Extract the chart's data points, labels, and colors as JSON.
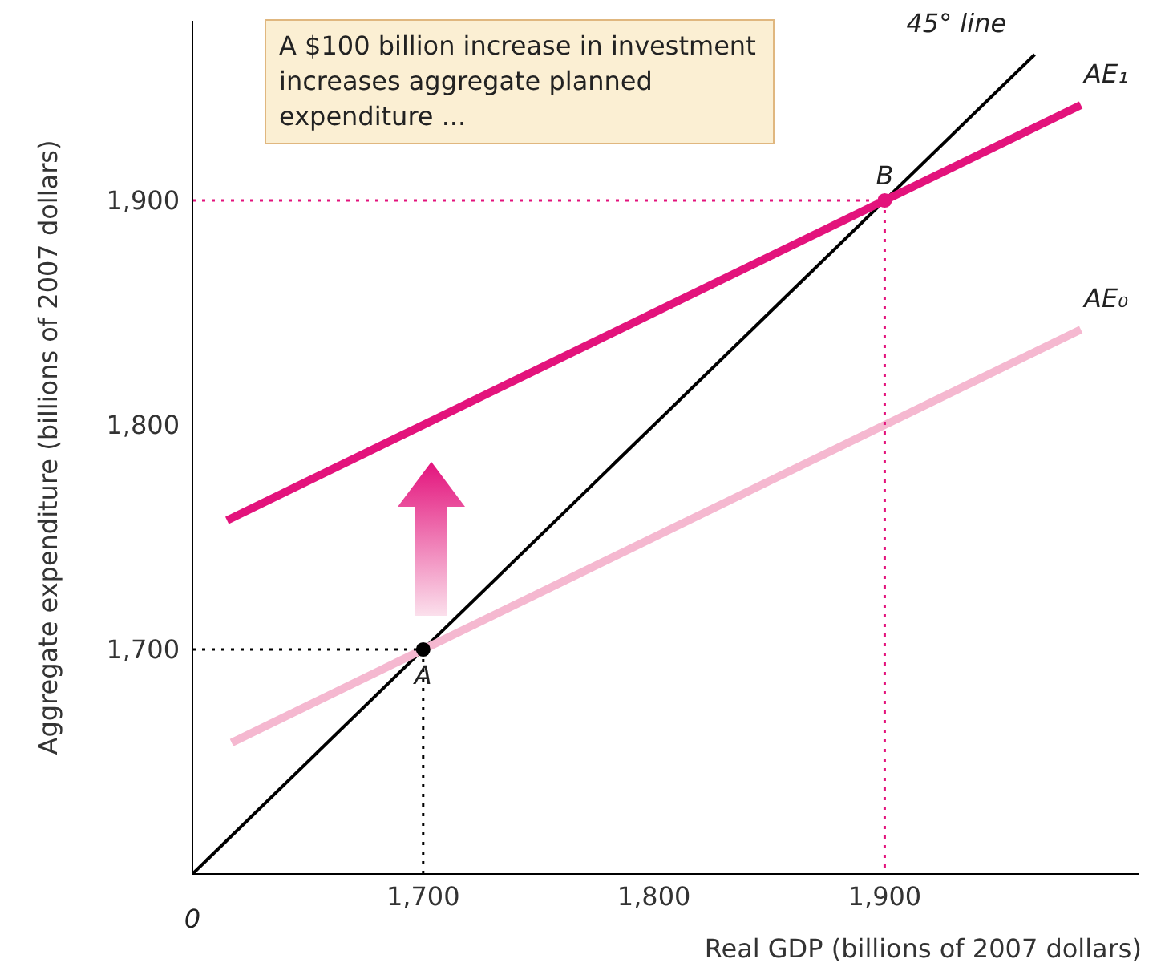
{
  "chart_data": {
    "type": "line",
    "xlabel": "Real GDP (billions of 2007 dollars)",
    "ylabel": "Aggregate expenditure (billions of 2007 dollars)",
    "xlim": [
      1600,
      2010
    ],
    "ylim": [
      1600,
      1980
    ],
    "xticks": [
      {
        "value": 1700,
        "label": "1,700"
      },
      {
        "value": 1800,
        "label": "1,800"
      },
      {
        "value": 1900,
        "label": "1,900"
      }
    ],
    "yticks": [
      {
        "value": 1700,
        "label": "1,700"
      },
      {
        "value": 1800,
        "label": "1,800"
      },
      {
        "value": 1900,
        "label": "1,900"
      }
    ],
    "grid": false,
    "legend": false,
    "marker": "none",
    "series": [
      {
        "name": "45° line",
        "color": "#000000",
        "x": [
          1600,
          1965
        ],
        "values": [
          1600,
          1965
        ]
      },
      {
        "name": "AE₀",
        "color": "#f5b8d0",
        "x": [
          1617,
          1985
        ],
        "values": [
          1658.5,
          1842.5
        ]
      },
      {
        "name": "AE₁",
        "color": "#e3137c",
        "x": [
          1615,
          1985
        ],
        "values": [
          1757.5,
          1942.5
        ]
      },
      {
        "color": "#000000",
        "line_style": "dotted",
        "x": [
          1600,
          1700
        ],
        "values": [
          1700,
          1700
        ]
      },
      {
        "color": "#000000",
        "line_style": "dotted",
        "x": [
          1700,
          1700
        ],
        "values": [
          1700,
          1600
        ]
      },
      {
        "color": "#e3137c",
        "line_style": "dotted",
        "x": [
          1600,
          1900
        ],
        "values": [
          1900,
          1900
        ]
      },
      {
        "color": "#e3137c",
        "line_style": "dotted",
        "x": [
          1900,
          1900
        ],
        "values": [
          1900,
          1600
        ]
      },
      {
        "type": "scatter",
        "marker": "circle",
        "color": "#000000",
        "x": [
          1700
        ],
        "values": [
          1700
        ]
      },
      {
        "type": "scatter",
        "marker": "circle",
        "color": "#e3137c",
        "x": [
          1900
        ],
        "values": [
          1900
        ]
      }
    ],
    "annotations": [
      "A $100 billion increase in investment increases aggregate planned expenditure ...",
      {
        "text": "A",
        "x": 1700,
        "y": 1700
      },
      {
        "text": "B",
        "x": 1900,
        "y": 1900
      },
      {
        "text": "0",
        "x": 1600,
        "y": 1600
      }
    ]
  }
}
